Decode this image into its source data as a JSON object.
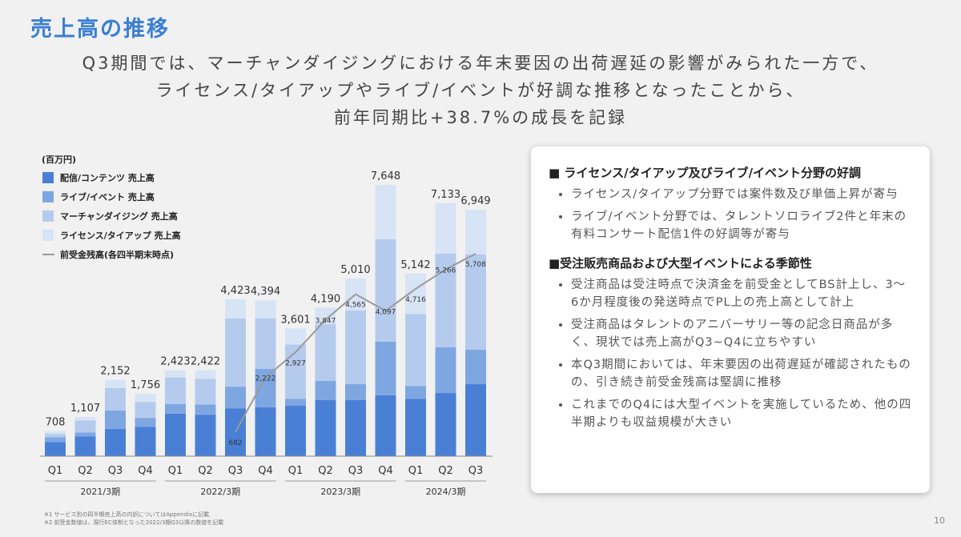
{
  "header": {
    "title": "売上高の推移",
    "subtitle_lines": [
      "Q3期間では、マーチャンダイジングにおける年末要因の出荷遅延の影響がみられた一方で、",
      "ライセンス/タイアップやライブ/イベントが好調な推移となったことから、",
      "前年同期比+38.7%の成長を記録"
    ]
  },
  "chart_data": {
    "type": "bar",
    "stacked": true,
    "unit": "(百万円)",
    "categories": [
      "Q1",
      "Q2",
      "Q3",
      "Q4",
      "Q1",
      "Q2",
      "Q3",
      "Q4",
      "Q1",
      "Q2",
      "Q3",
      "Q4",
      "Q1",
      "Q2",
      "Q3"
    ],
    "groups": [
      "2021/3期",
      "2022/3期",
      "2023/3期",
      "2024/3期"
    ],
    "series": [
      {
        "name": "配信/コンテンツ 売上高",
        "color": "#4a7fd6",
        "values": [
          400,
          560,
          770,
          830,
          1200,
          1170,
          1350,
          1380,
          1420,
          1580,
          1580,
          1720,
          1620,
          1780,
          2030
        ]
      },
      {
        "name": "ライブ/イベント 売上高",
        "color": "#7ea7e2",
        "values": [
          130,
          110,
          520,
          250,
          270,
          290,
          610,
          1080,
          200,
          540,
          450,
          1510,
          360,
          1290,
          970
        ]
      },
      {
        "name": "マーチャンダイジング 売上高",
        "color": "#b5cbee",
        "values": [
          100,
          340,
          630,
          450,
          750,
          720,
          1920,
          1420,
          1530,
          1600,
          2080,
          2890,
          2030,
          2640,
          2690
        ]
      },
      {
        "name": "ライセンス/タイアップ 売上高",
        "color": "#d7e4f5",
        "values": [
          78,
          97,
          232,
          226,
          203,
          242,
          543,
          514,
          451,
          470,
          900,
          1528,
          1132,
          1423,
          1259
        ]
      },
      {
        "name": "前受金残高(各四半期末時点)",
        "type": "line",
        "color": "#9a9a9a",
        "values": [
          null,
          null,
          null,
          null,
          null,
          null,
          682,
          2222,
          2927,
          3847,
          4565,
          4097,
          4716,
          5266,
          5708
        ],
        "value_labels": [
          null,
          null,
          null,
          null,
          null,
          null,
          "682",
          "2,222",
          "2,927",
          "3,847",
          "4,565",
          "4,097",
          "4,716",
          "5,266",
          "5,708"
        ]
      }
    ],
    "totals": {
      "values": [
        708,
        1107,
        2152,
        1756,
        2423,
        2422,
        4423,
        4394,
        3601,
        4190,
        5010,
        7648,
        5142,
        7133,
        6949
      ],
      "value_labels": [
        "708",
        "1,107",
        "2,152",
        "1,756",
        "2,423",
        "2,422",
        "4,423",
        "4,394",
        "3,601",
        "4,190",
        "5,010",
        "7,648",
        "5,142",
        "7,133",
        "6,949"
      ]
    }
  },
  "panel": {
    "sections": [
      {
        "heading": "■ ライセンス/タイアップ及びライブ/イベント分野の好調",
        "bullets": [
          "ライセンス/タイアップ分野では案件数及び単価上昇が寄与",
          "ライブ/イベント分野では、タレントソロライブ2件と年末の有料コンサート配信1件の好調等が寄与"
        ]
      },
      {
        "heading": "■受注販売商品および大型イベントによる季節性",
        "bullets": [
          "受注商品は受注時点で決済金を前受金としてBS計上し、3～6か月程度後の発送時点でPL上の売上高として計上",
          "受注商品はタレントのアニバーサリー等の記念日商品が多く、現状では売上高がQ3~Q4に立ちやすい",
          "本Q3期間においては、年末要因の出荷遅延が確認されたものの、引き続き前受金残高は堅調に推移",
          "これまでのQ4には大型イベントを実施しているため、他の四半期よりも収益規模が大きい"
        ]
      }
    ]
  },
  "footnotes": [
    "※1 サービス別の四半期売上高の内訳についてはAppendixに記載",
    "※2 前受金数値は、現行EC体制となった2022/3期Q3以降の数値を記載"
  ],
  "page_number": "10"
}
